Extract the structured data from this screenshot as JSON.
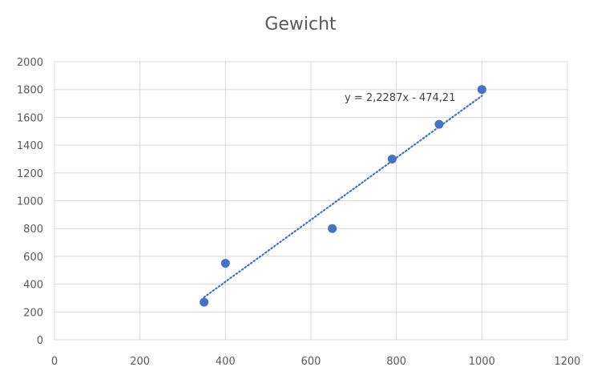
{
  "chart_data": {
    "type": "scatter",
    "title": "Gewicht",
    "xlabel": "",
    "ylabel": "",
    "xlim": [
      0,
      1200
    ],
    "ylim": [
      0,
      2000
    ],
    "x_ticks": [
      0,
      200,
      400,
      600,
      800,
      1000,
      1200
    ],
    "y_ticks": [
      0,
      200,
      400,
      600,
      800,
      1000,
      1200,
      1400,
      1600,
      1800,
      2000
    ],
    "grid": true,
    "legend": "none",
    "series": [
      {
        "points": [
          {
            "x": 350,
            "y": 270
          },
          {
            "x": 400,
            "y": 550
          },
          {
            "x": 650,
            "y": 800
          },
          {
            "x": 790,
            "y": 1300
          },
          {
            "x": 900,
            "y": 1550
          },
          {
            "x": 1000,
            "y": 1800
          }
        ],
        "color": "#4472C4"
      }
    ],
    "trendline": {
      "type": "linear",
      "slope": 2.2287,
      "intercept": -474.21,
      "x_range": [
        350,
        1000
      ],
      "style": "dotted",
      "color": "#4472C4",
      "equation_label": "y = 2,2287x - 474,21"
    }
  },
  "colors": {
    "grid": "#d9d9d9",
    "axis_text": "#595959",
    "marker": "#4472C4"
  }
}
